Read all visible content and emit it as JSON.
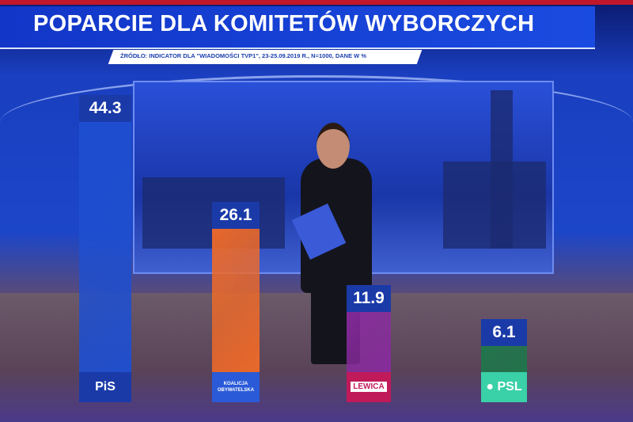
{
  "header": {
    "title": "POPARCIE DLA KOMITETÓW WYBORCZYCH",
    "source": "ŹRÓDŁO: INDICATOR DLA \"WIADOMOŚCI TVP1\", 23-25.09.2019 R., N=1000, DANE W %"
  },
  "chart_data": {
    "type": "bar",
    "title": "POPARCIE DLA KOMITETÓW WYBORCZYCH",
    "categories": [
      "PiS",
      "KO",
      "Lewica",
      "PSL"
    ],
    "values": [
      44.3,
      26.1,
      11.9,
      6.1
    ],
    "value_labels": [
      "44.3",
      "26.1",
      "11.9",
      "6.1"
    ],
    "logos": [
      "PiS",
      "KOALICJA OBYWATELSKA",
      "LEWICA",
      "● PSL"
    ],
    "colors": [
      "#1e4fd0",
      "#f06a28",
      "#8a2aa0",
      "#1a7a4a"
    ],
    "unit": "%"
  }
}
